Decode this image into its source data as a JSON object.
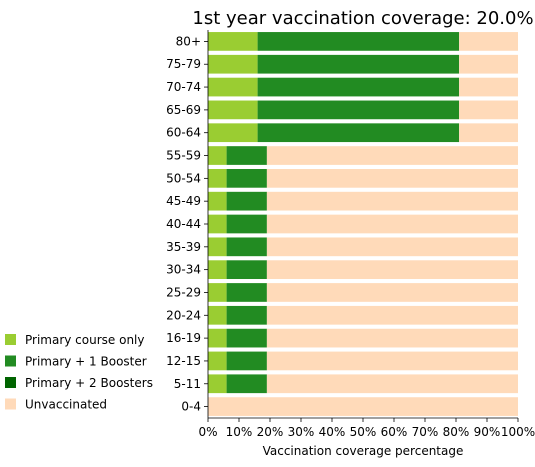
{
  "chart_data": {
    "type": "bar",
    "orientation": "horizontal",
    "stacked": true,
    "title": "1st year vaccination coverage: 20.0%",
    "xlabel": "Vaccination coverage percentage",
    "ylabel": "",
    "xlim": [
      0,
      100
    ],
    "x_ticks": [
      "0%",
      "10%",
      "20%",
      "30%",
      "40%",
      "50%",
      "60%",
      "70%",
      "80%",
      "90%",
      "100%"
    ],
    "categories": [
      "80+",
      "75-79",
      "70-74",
      "65-69",
      "60-64",
      "55-59",
      "50-54",
      "45-49",
      "40-44",
      "35-39",
      "30-34",
      "25-29",
      "20-24",
      "16-19",
      "12-15",
      "5-11",
      "0-4"
    ],
    "series": [
      {
        "name": "Primary course only",
        "color": "#9acd32",
        "values": [
          16,
          16,
          16,
          16,
          16,
          6,
          6,
          6,
          6,
          6,
          6,
          6,
          6,
          6,
          6,
          6,
          0
        ]
      },
      {
        "name": "Primary + 1 Booster",
        "color": "#228b22",
        "values": [
          65,
          65,
          65,
          65,
          65,
          13,
          13,
          13,
          13,
          13,
          13,
          13,
          13,
          13,
          13,
          13,
          0
        ]
      },
      {
        "name": "Primary + 2 Boosters",
        "color": "#006400",
        "values": [
          0,
          0,
          0,
          0,
          0,
          0,
          0,
          0,
          0,
          0,
          0,
          0,
          0,
          0,
          0,
          0,
          0
        ]
      },
      {
        "name": "Unvaccinated",
        "color": "#ffdab9",
        "values": [
          19,
          19,
          19,
          19,
          19,
          81,
          81,
          81,
          81,
          81,
          81,
          81,
          81,
          81,
          81,
          81,
          100
        ]
      }
    ],
    "grid": false,
    "legend_position": "left"
  }
}
